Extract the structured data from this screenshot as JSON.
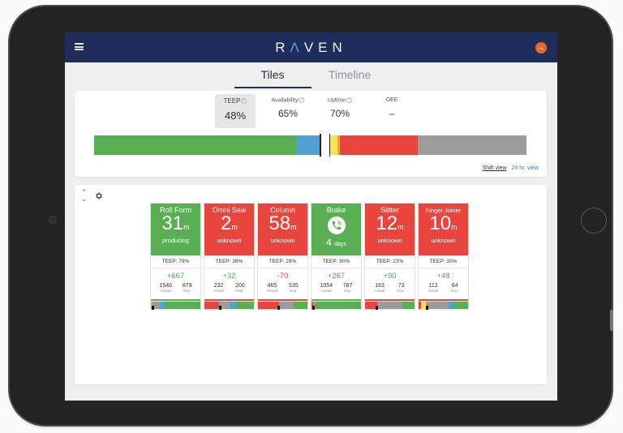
{
  "app": {
    "logo": "RAVEN",
    "avatar_initials": "HA",
    "colors": {
      "nav": "#1f2d5a",
      "green": "#5aaf55",
      "red": "#e8453f",
      "blue": "#4fa0d3",
      "yellow": "#f4e74d",
      "orange": "#f0a04b",
      "gray": "#9b9b9b",
      "avatar": "#e06a2c"
    }
  },
  "tabs": [
    {
      "label": "Tiles",
      "active": true
    },
    {
      "label": "Timeline",
      "active": false
    }
  ],
  "metrics": [
    {
      "label": "TEEP",
      "value": "48%",
      "info": true,
      "selected": true
    },
    {
      "label": "Availability",
      "value": "65%",
      "info": true,
      "selected": false
    },
    {
      "label": "Uptime",
      "value": "70%",
      "info": true,
      "selected": false
    },
    {
      "label": "OEE",
      "value": "–",
      "info": false,
      "selected": false
    }
  ],
  "timeline": {
    "segments": [
      {
        "color": "#5aaf55",
        "pct": 46.8
      },
      {
        "color": "#4fa0d3",
        "pct": 5.6
      },
      {
        "color": "#ffffff",
        "pct": 2.2
      },
      {
        "color": "#f4e74d",
        "pct": 1.7
      },
      {
        "color": "#f0a04b",
        "pct": 0.6
      },
      {
        "color": "#e8453f",
        "pct": 17.9
      },
      {
        "color": "#9b9b9b",
        "pct": 25.2
      }
    ],
    "markers_pct": [
      52.2,
      54.4
    ]
  },
  "view_links": {
    "shift": "Shift view",
    "h24": "24 hr. view"
  },
  "tiles": [
    {
      "name": "Roll Form",
      "color": "#5aaf55",
      "value": "31",
      "unit": "m",
      "status": "producing",
      "teep": "TEEP: 79%",
      "delta": "+667",
      "delta_color": "#4caf50",
      "actual": "1546",
      "expected": "879",
      "actual_label": "Actual",
      "exp_label": "Exp.",
      "line": "#5aaf55",
      "bar": [
        {
          "c": "#f0a04b",
          "p": 3
        },
        {
          "c": "#9b9b9b",
          "p": 17
        },
        {
          "c": "#4fa0d3",
          "p": 10
        },
        {
          "c": "#5aaf55",
          "p": 70
        }
      ],
      "mk": 2
    },
    {
      "name": "Omni Saw",
      "color": "#e8453f",
      "value": "2",
      "unit": "m",
      "status": "unknown",
      "teep": "TEEP: 38%",
      "delta": "+32",
      "delta_color": "#4caf50",
      "actual": "232",
      "expected": "200",
      "actual_label": "Actual",
      "exp_label": "Exp.",
      "line": "#e8453f",
      "bar": [
        {
          "c": "#e8453f",
          "p": 30
        },
        {
          "c": "#9b9b9b",
          "p": 22
        },
        {
          "c": "#4fa0d3",
          "p": 13
        },
        {
          "c": "#5aaf55",
          "p": 35
        }
      ],
      "mk": 29
    },
    {
      "name": "Column",
      "color": "#e8453f",
      "value": "58",
      "unit": "m",
      "status": "unknown",
      "teep": "TEEP: 28%",
      "delta": "-70",
      "delta_color": "#e8453f",
      "actual": "465",
      "expected": "535",
      "actual_label": "Actual",
      "exp_label": "Exp.",
      "line": "#e8453f",
      "bar": [
        {
          "c": "#e8453f",
          "p": 42
        },
        {
          "c": "#9b9b9b",
          "p": 30
        },
        {
          "c": "#5aaf55",
          "p": 28
        }
      ],
      "mk": 40
    },
    {
      "name": "Brake",
      "color": "#5aaf55",
      "icon": "phone-ringing-icon",
      "days_value": "4",
      "days_unit": "days",
      "teep": "TEEP: 90%",
      "delta": "+267",
      "delta_color": "#4caf50",
      "actual": "1054",
      "expected": "787",
      "actual_label": "Actual",
      "exp_label": "Exp.",
      "line": "#5aaf55",
      "bar": [
        {
          "c": "#e8453f",
          "p": 3
        },
        {
          "c": "#9b9b9b",
          "p": 5
        },
        {
          "c": "#5aaf55",
          "p": 92
        }
      ],
      "mk": 2
    },
    {
      "name": "Slitter",
      "color": "#e8453f",
      "value": "12",
      "unit": "m",
      "status": "unknown",
      "teep": "TEEP: 23%",
      "delta": "+90",
      "delta_color": "#4caf50",
      "actual": "163",
      "expected": "73",
      "actual_label": "Actual",
      "exp_label": "Exp.",
      "line": "#e8453f",
      "bar": [
        {
          "c": "#e8453f",
          "p": 25
        },
        {
          "c": "#9b9b9b",
          "p": 50
        },
        {
          "c": "#5aaf55",
          "p": 25
        }
      ],
      "mk": 22
    },
    {
      "name": "Finger Joiner",
      "color": "#e8453f",
      "value": "10",
      "unit": "m",
      "status": "unknown",
      "teep": "TEEP: 30%",
      "delta": "+48",
      "delta_color": "#4caf50",
      "actual": "112",
      "expected": "64",
      "actual_label": "Actual",
      "exp_label": "Exp.",
      "line": "#e8453f",
      "bar": [
        {
          "c": "#e8453f",
          "p": 5
        },
        {
          "c": "#f4e74d",
          "p": 9
        },
        {
          "c": "#9b9b9b",
          "p": 46
        },
        {
          "c": "#4fa0d3",
          "p": 11
        },
        {
          "c": "#5aaf55",
          "p": 29
        }
      ],
      "mk": 14
    }
  ]
}
